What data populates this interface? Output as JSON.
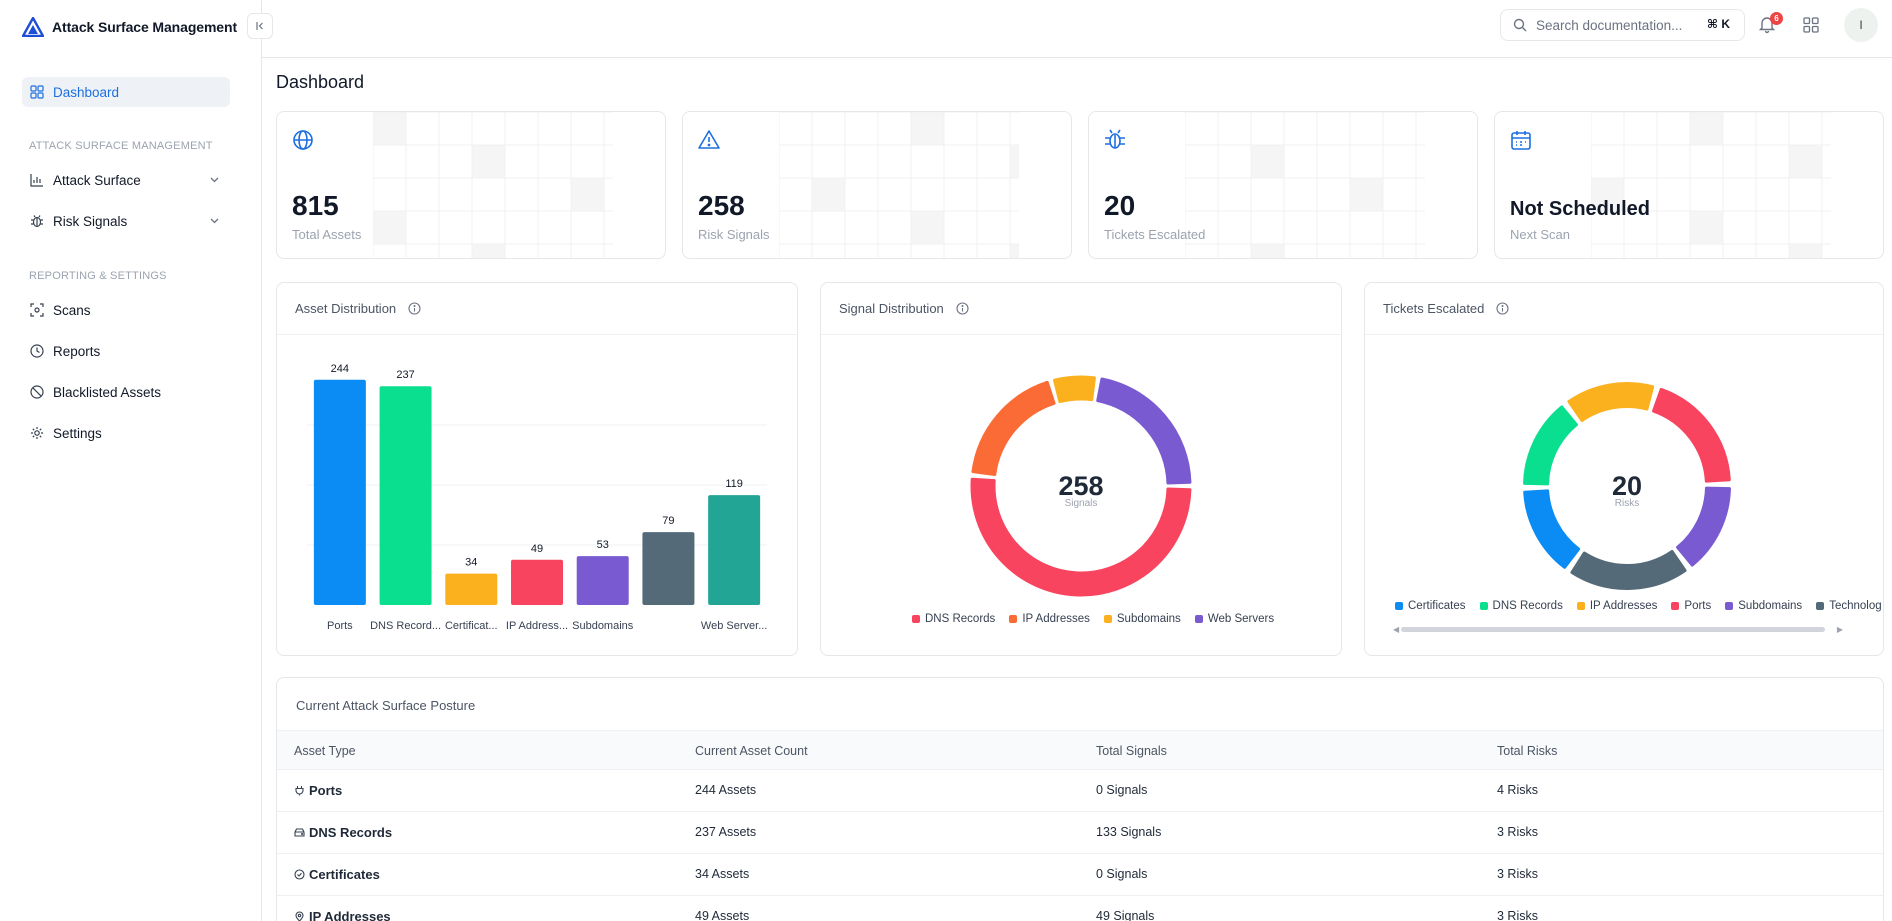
{
  "brand": {
    "title": "Attack Surface Management"
  },
  "sidebar": {
    "dashboard": "Dashboard",
    "section1": "ATTACK SURFACE MANAGEMENT",
    "attack_surface": "Attack Surface",
    "risk_signals": "Risk Signals",
    "section2": "REPORTING & SETTINGS",
    "scans": "Scans",
    "reports": "Reports",
    "blacklisted": "Blacklisted Assets",
    "settings": "Settings"
  },
  "topbar": {
    "search_placeholder": "Search documentation...",
    "shortcut": "⌘ K",
    "notification_count": "6",
    "avatar_initial": "I"
  },
  "page": {
    "title": "Dashboard"
  },
  "stats": [
    {
      "value": "815",
      "label": "Total Assets",
      "icon": "globe-icon"
    },
    {
      "value": "258",
      "label": "Risk Signals",
      "icon": "warning-icon"
    },
    {
      "value": "20",
      "label": "Tickets Escalated",
      "icon": "bug-icon"
    },
    {
      "value": "Not Scheduled",
      "label": "Next Scan",
      "icon": "calendar-icon"
    }
  ],
  "charts": {
    "asset_title": "Asset Distribution",
    "signal_title": "Signal Distribution",
    "tickets_title": "Tickets Escalated",
    "signal_center_value": "258",
    "signal_center_label": "Signals",
    "tickets_center_value": "20",
    "tickets_center_label": "Risks"
  },
  "chart_data": [
    {
      "type": "bar",
      "title": "Asset Distribution",
      "categories": [
        "Ports",
        "DNS Record...",
        "Certificat...",
        "IP Address...",
        "Subdomains",
        "",
        "Web Server..."
      ],
      "values": [
        244,
        237,
        34,
        49,
        53,
        79,
        119
      ],
      "colors": [
        "#0b8cf5",
        "#0adf8f",
        "#fbb01e",
        "#f8445e",
        "#7a5ad0",
        "#556a78",
        "#23a595"
      ],
      "ylim": [
        0,
        260
      ]
    },
    {
      "type": "pie",
      "title": "Signal Distribution",
      "categories": [
        "DNS Records",
        "IP Addresses",
        "Subdomains",
        "Web Servers"
      ],
      "values": [
        133,
        49,
        18,
        58
      ],
      "colors": [
        "#f8445e",
        "#fb6b36",
        "#fbb01e",
        "#7a5ad0"
      ]
    },
    {
      "type": "pie",
      "title": "Tickets Escalated",
      "categories": [
        "Certificates",
        "DNS Records",
        "IP Addresses",
        "Ports",
        "Subdomains",
        "Technolog"
      ],
      "values": [
        3,
        3,
        3,
        4,
        3,
        4
      ],
      "colors": [
        "#0b8cf5",
        "#0adf8f",
        "#fbb01e",
        "#f8445e",
        "#7a5ad0",
        "#556a78"
      ]
    }
  ],
  "table": {
    "title": "Current Attack Surface Posture",
    "headers": [
      "Asset Type",
      "Current Asset Count",
      "Total Signals",
      "Total Risks"
    ],
    "rows": [
      {
        "type": "Ports",
        "count": "244 Assets",
        "signals": "0 Signals",
        "risks": "4 Risks"
      },
      {
        "type": "DNS Records",
        "count": "237 Assets",
        "signals": "133 Signals",
        "risks": "3 Risks"
      },
      {
        "type": "Certificates",
        "count": "34 Assets",
        "signals": "0 Signals",
        "risks": "3 Risks"
      },
      {
        "type": "IP Addresses",
        "count": "49 Assets",
        "signals": "49 Signals",
        "risks": "3 Risks"
      }
    ]
  }
}
